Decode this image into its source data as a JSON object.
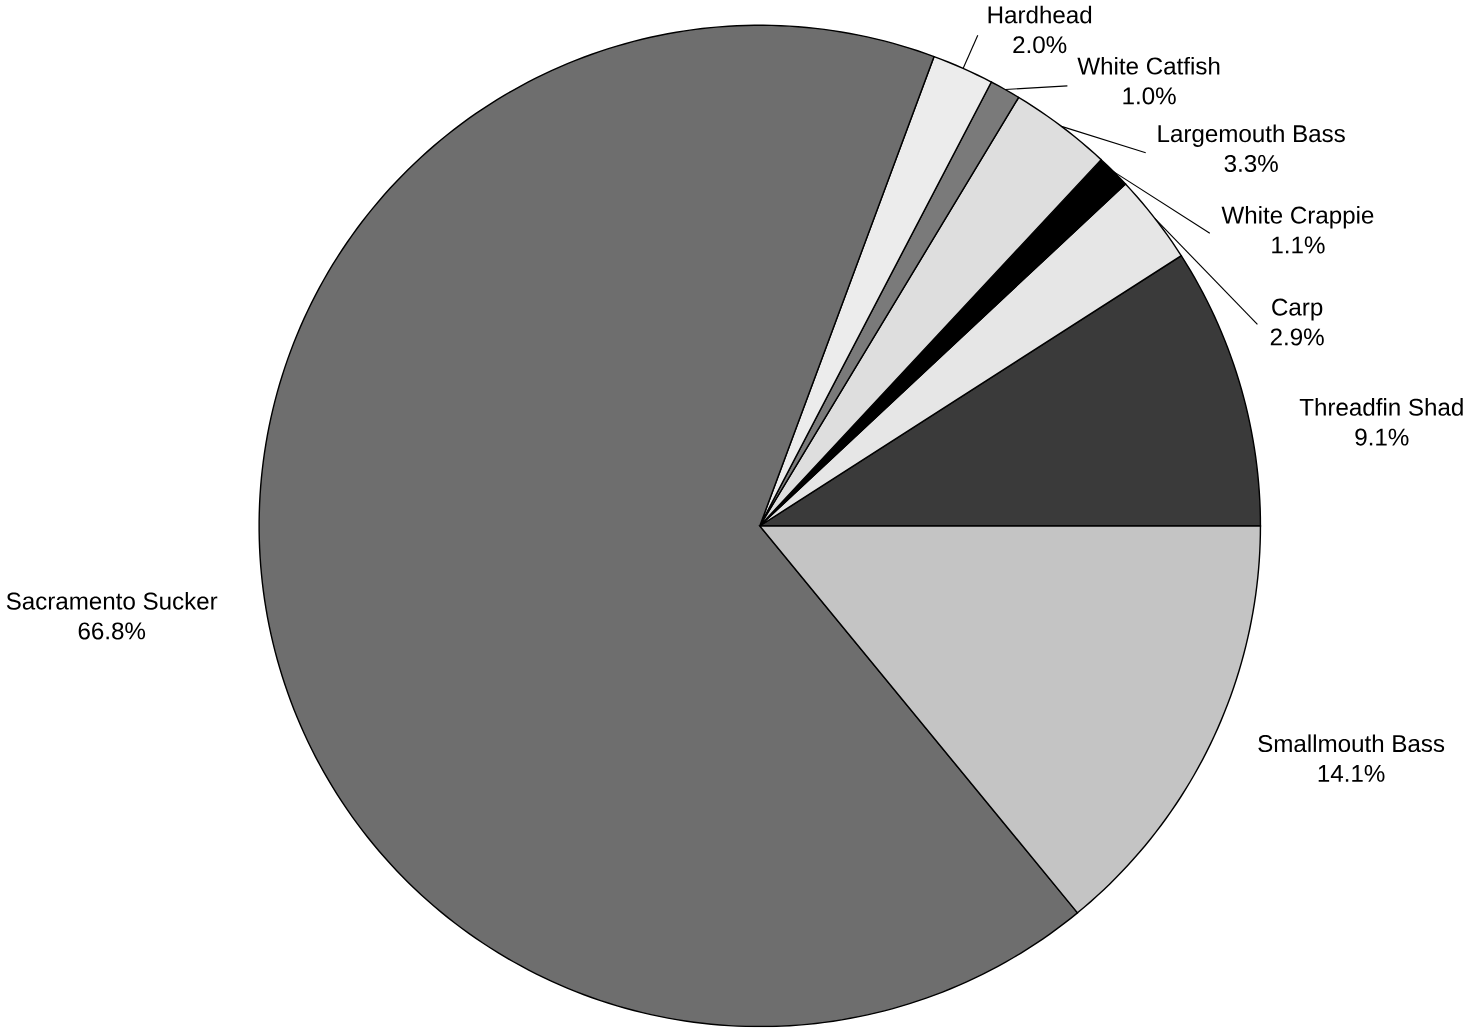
{
  "chart_data": {
    "type": "pie",
    "categories": [
      "Threadfin Shad",
      "Carp",
      "White Crappie",
      "Largemouth Bass",
      "White Catfish",
      "Hardhead",
      "Sacramento Sucker",
      "Smallmouth Bass"
    ],
    "values": [
      9.1,
      2.9,
      1.1,
      3.3,
      1.0,
      2.0,
      66.8,
      14.1
    ],
    "value_labels": [
      "9.1%",
      "2.9%",
      "1.1%",
      "3.3%",
      "1.0%",
      "2.0%",
      "66.8%",
      "14.1%"
    ],
    "colors": [
      "#3a3a3a",
      "#e6e6e6",
      "#000000",
      "#dedede",
      "#7a7a7a",
      "#ececec",
      "#6e6e6e",
      "#c4c4c4"
    ]
  }
}
